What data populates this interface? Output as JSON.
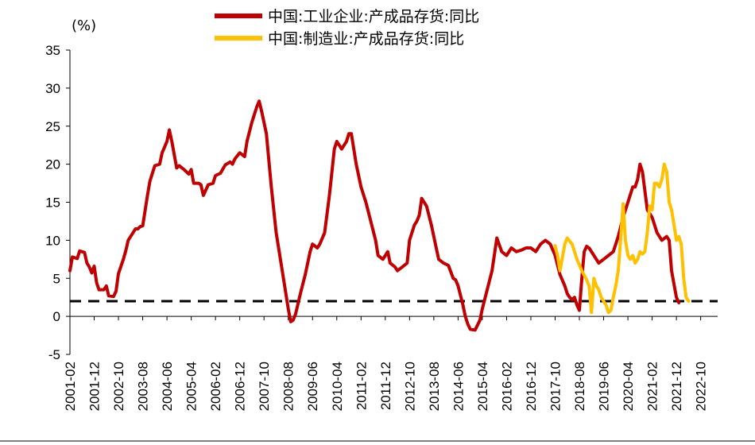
{
  "chart_data": {
    "type": "line",
    "unit_label": "(%)",
    "ylim": [
      -5,
      35
    ],
    "yticks": [
      "35",
      "30",
      "25",
      "20",
      "15",
      "10",
      "5",
      "0",
      "-5"
    ],
    "xlim": [
      "2001-02",
      "2023-05"
    ],
    "xticks": [
      "2001-02",
      "2001-12",
      "2002-10",
      "2003-08",
      "2004-06",
      "2005-04",
      "2006-02",
      "2006-12",
      "2007-10",
      "2008-08",
      "2009-06",
      "2010-04",
      "2011-02",
      "2011-12",
      "2012-10",
      "2013-08",
      "2014-06",
      "2015-04",
      "2016-02",
      "2016-12",
      "2017-10",
      "2018-08",
      "2019-06",
      "2020-04",
      "2021-02",
      "2021-12",
      "2022-10"
    ],
    "legend_position": "top-center",
    "reference_line": {
      "y": 2,
      "style": "dashed",
      "color": "#000000"
    },
    "series": [
      {
        "name": "中国:工业企业:产成品存货:同比",
        "color": "#C00000",
        "points": [
          [
            "2001-02",
            6
          ],
          [
            "2001-03",
            7.8
          ],
          [
            "2001-05",
            7.6
          ],
          [
            "2001-06",
            8.6
          ],
          [
            "2001-08",
            8.4
          ],
          [
            "2001-09",
            7
          ],
          [
            "2001-10",
            6.5
          ],
          [
            "2001-11",
            5.7
          ],
          [
            "2001-12",
            6.6
          ],
          [
            "2002-01",
            4.4
          ],
          [
            "2002-02",
            3.5
          ],
          [
            "2002-04",
            3.5
          ],
          [
            "2002-05",
            4
          ],
          [
            "2002-06",
            2.7
          ],
          [
            "2002-08",
            2.6
          ],
          [
            "2002-09",
            3.3
          ],
          [
            "2002-10",
            5.6
          ],
          [
            "2002-12",
            7.5
          ],
          [
            "2003-01",
            8.6
          ],
          [
            "2003-02",
            10
          ],
          [
            "2003-04",
            11
          ],
          [
            "2003-05",
            11.5
          ],
          [
            "2003-06",
            11.5
          ],
          [
            "2003-07",
            11.8
          ],
          [
            "2003-08",
            11.9
          ],
          [
            "2003-10",
            16
          ],
          [
            "2003-11",
            17.8
          ],
          [
            "2004-01",
            19.8
          ],
          [
            "2004-03",
            20
          ],
          [
            "2004-04",
            21.5
          ],
          [
            "2004-06",
            23
          ],
          [
            "2004-07",
            24.5
          ],
          [
            "2004-08",
            23
          ],
          [
            "2004-10",
            19.5
          ],
          [
            "2004-11",
            19.8
          ],
          [
            "2005-01",
            19.3
          ],
          [
            "2005-03",
            18.7
          ],
          [
            "2005-04",
            19.3
          ],
          [
            "2005-05",
            17.5
          ],
          [
            "2005-07",
            17.5
          ],
          [
            "2005-08",
            17.3
          ],
          [
            "2005-09",
            15.9
          ],
          [
            "2005-11",
            17.3
          ],
          [
            "2006-01",
            17.5
          ],
          [
            "2006-02",
            18.5
          ],
          [
            "2006-04",
            18.8
          ],
          [
            "2006-06",
            19.9
          ],
          [
            "2006-08",
            20.3
          ],
          [
            "2006-09",
            20
          ],
          [
            "2006-10",
            20.7
          ],
          [
            "2006-12",
            21.5
          ],
          [
            "2007-02",
            21
          ],
          [
            "2007-03",
            23
          ],
          [
            "2007-05",
            25.5
          ],
          [
            "2007-07",
            27.5
          ],
          [
            "2007-08",
            28.3
          ],
          [
            "2007-09",
            27
          ],
          [
            "2007-11",
            24
          ],
          [
            "2008-01",
            17
          ],
          [
            "2008-03",
            11
          ],
          [
            "2008-05",
            7
          ],
          [
            "2008-07",
            3
          ],
          [
            "2008-08",
            1
          ],
          [
            "2008-09",
            -0.7
          ],
          [
            "2008-10",
            -0.5
          ],
          [
            "2008-11",
            0.3
          ],
          [
            "2009-01",
            3
          ],
          [
            "2009-03",
            5.5
          ],
          [
            "2009-05",
            8.5
          ],
          [
            "2009-06",
            9.5
          ],
          [
            "2009-08",
            9
          ],
          [
            "2009-09",
            9.5
          ],
          [
            "2009-11",
            11
          ],
          [
            "2010-01",
            16
          ],
          [
            "2010-03",
            22
          ],
          [
            "2010-04",
            23
          ],
          [
            "2010-06",
            22
          ],
          [
            "2010-08",
            23
          ],
          [
            "2010-09",
            24
          ],
          [
            "2010-10",
            24
          ],
          [
            "2010-12",
            20
          ],
          [
            "2011-02",
            17
          ],
          [
            "2011-04",
            15
          ],
          [
            "2011-06",
            12.5
          ],
          [
            "2011-08",
            10
          ],
          [
            "2011-09",
            8
          ],
          [
            "2011-11",
            7.5
          ],
          [
            "2012-01",
            8.5
          ],
          [
            "2012-02",
            7
          ],
          [
            "2012-04",
            6.5
          ],
          [
            "2012-05",
            6
          ],
          [
            "2012-07",
            6.5
          ],
          [
            "2012-09",
            7
          ],
          [
            "2012-10",
            10
          ],
          [
            "2012-12",
            12
          ],
          [
            "2013-01",
            12.5
          ],
          [
            "2013-02",
            13.3
          ],
          [
            "2013-03",
            15.5
          ],
          [
            "2013-05",
            14.5
          ],
          [
            "2013-07",
            12
          ],
          [
            "2013-09",
            9
          ],
          [
            "2013-10",
            7.5
          ],
          [
            "2013-12",
            7
          ],
          [
            "2014-02",
            6.7
          ],
          [
            "2014-04",
            5
          ],
          [
            "2014-05",
            4.8
          ],
          [
            "2014-06",
            4
          ],
          [
            "2014-08",
            1.5
          ],
          [
            "2014-09",
            0
          ],
          [
            "2014-10",
            -1
          ],
          [
            "2014-11",
            -1.7
          ],
          [
            "2015-01",
            -1.8
          ],
          [
            "2015-03",
            -0.5
          ],
          [
            "2015-04",
            1
          ],
          [
            "2015-06",
            3.5
          ],
          [
            "2015-08",
            6
          ],
          [
            "2015-10",
            10.3
          ],
          [
            "2015-12",
            8.5
          ],
          [
            "2016-02",
            8
          ],
          [
            "2016-04",
            9
          ],
          [
            "2016-06",
            8.5
          ],
          [
            "2016-08",
            8.7
          ],
          [
            "2016-10",
            9
          ],
          [
            "2016-12",
            9
          ],
          [
            "2017-02",
            8.5
          ],
          [
            "2017-04",
            9.5
          ],
          [
            "2017-06",
            10
          ],
          [
            "2017-08",
            9.5
          ],
          [
            "2017-10",
            8
          ],
          [
            "2017-12",
            5.5
          ],
          [
            "2018-02",
            4
          ],
          [
            "2018-03",
            3
          ],
          [
            "2018-04",
            2.5
          ],
          [
            "2018-05",
            2.2
          ],
          [
            "2018-06",
            2.5
          ],
          [
            "2018-07",
            1.5
          ],
          [
            "2018-08",
            0.8
          ],
          [
            "2018-09",
            5
          ],
          [
            "2018-10",
            8.5
          ],
          [
            "2018-11",
            9.2
          ],
          [
            "2018-12",
            9
          ],
          [
            "2019-02",
            8
          ],
          [
            "2019-04",
            7
          ],
          [
            "2019-06",
            7.5
          ],
          [
            "2019-08",
            8
          ],
          [
            "2019-10",
            8.5
          ],
          [
            "2019-12",
            10.5
          ],
          [
            "2020-02",
            13
          ],
          [
            "2020-04",
            15
          ],
          [
            "2020-06",
            17
          ],
          [
            "2020-07",
            17
          ],
          [
            "2020-08",
            18
          ],
          [
            "2020-09",
            20
          ],
          [
            "2020-10",
            19
          ],
          [
            "2020-12",
            14
          ],
          [
            "2021-02",
            13
          ],
          [
            "2021-04",
            11
          ],
          [
            "2021-06",
            10
          ],
          [
            "2021-08",
            10.5
          ],
          [
            "2021-09",
            10
          ],
          [
            "2021-10",
            6
          ],
          [
            "2021-12",
            2.5
          ],
          [
            "2022-01",
            1.8
          ]
        ]
      },
      {
        "name": "中国:制造业:产成品存货:同比",
        "color": "#FFC000",
        "points": [
          [
            "2017-10",
            9.3
          ],
          [
            "2017-11",
            8
          ],
          [
            "2017-12",
            6
          ],
          [
            "2018-02",
            9.5
          ],
          [
            "2018-03",
            10.3
          ],
          [
            "2018-05",
            9.5
          ],
          [
            "2018-07",
            7.5
          ],
          [
            "2018-09",
            6
          ],
          [
            "2018-11",
            4.8
          ],
          [
            "2018-12",
            4
          ],
          [
            "2019-01",
            0.5
          ],
          [
            "2019-02",
            5
          ],
          [
            "2019-03",
            4
          ],
          [
            "2019-04",
            3.5
          ],
          [
            "2019-05",
            2.5
          ],
          [
            "2019-06",
            2
          ],
          [
            "2019-07",
            1.5
          ],
          [
            "2019-08",
            0.5
          ],
          [
            "2019-09",
            0.8
          ],
          [
            "2019-10",
            2.5
          ],
          [
            "2019-11",
            4
          ],
          [
            "2019-12",
            6
          ],
          [
            "2020-01",
            10
          ],
          [
            "2020-02",
            14.8
          ],
          [
            "2020-03",
            10
          ],
          [
            "2020-04",
            8
          ],
          [
            "2020-05",
            7.5
          ],
          [
            "2020-06",
            8
          ],
          [
            "2020-07",
            7
          ],
          [
            "2020-08",
            7.5
          ],
          [
            "2020-09",
            8.5
          ],
          [
            "2020-10",
            8.2
          ],
          [
            "2020-11",
            8.5
          ],
          [
            "2020-12",
            11
          ],
          [
            "2021-01",
            14.5
          ],
          [
            "2021-02",
            14
          ],
          [
            "2021-03",
            17.5
          ],
          [
            "2021-04",
            17.5
          ],
          [
            "2021-05",
            17
          ],
          [
            "2021-06",
            18
          ],
          [
            "2021-07",
            20
          ],
          [
            "2021-08",
            19
          ],
          [
            "2021-09",
            15
          ],
          [
            "2021-10",
            14
          ],
          [
            "2021-11",
            12
          ],
          [
            "2021-12",
            10
          ],
          [
            "2022-01",
            10.5
          ],
          [
            "2022-02",
            9.5
          ],
          [
            "2022-03",
            5
          ],
          [
            "2022-04",
            2.5
          ],
          [
            "2022-05",
            2
          ]
        ]
      }
    ]
  }
}
